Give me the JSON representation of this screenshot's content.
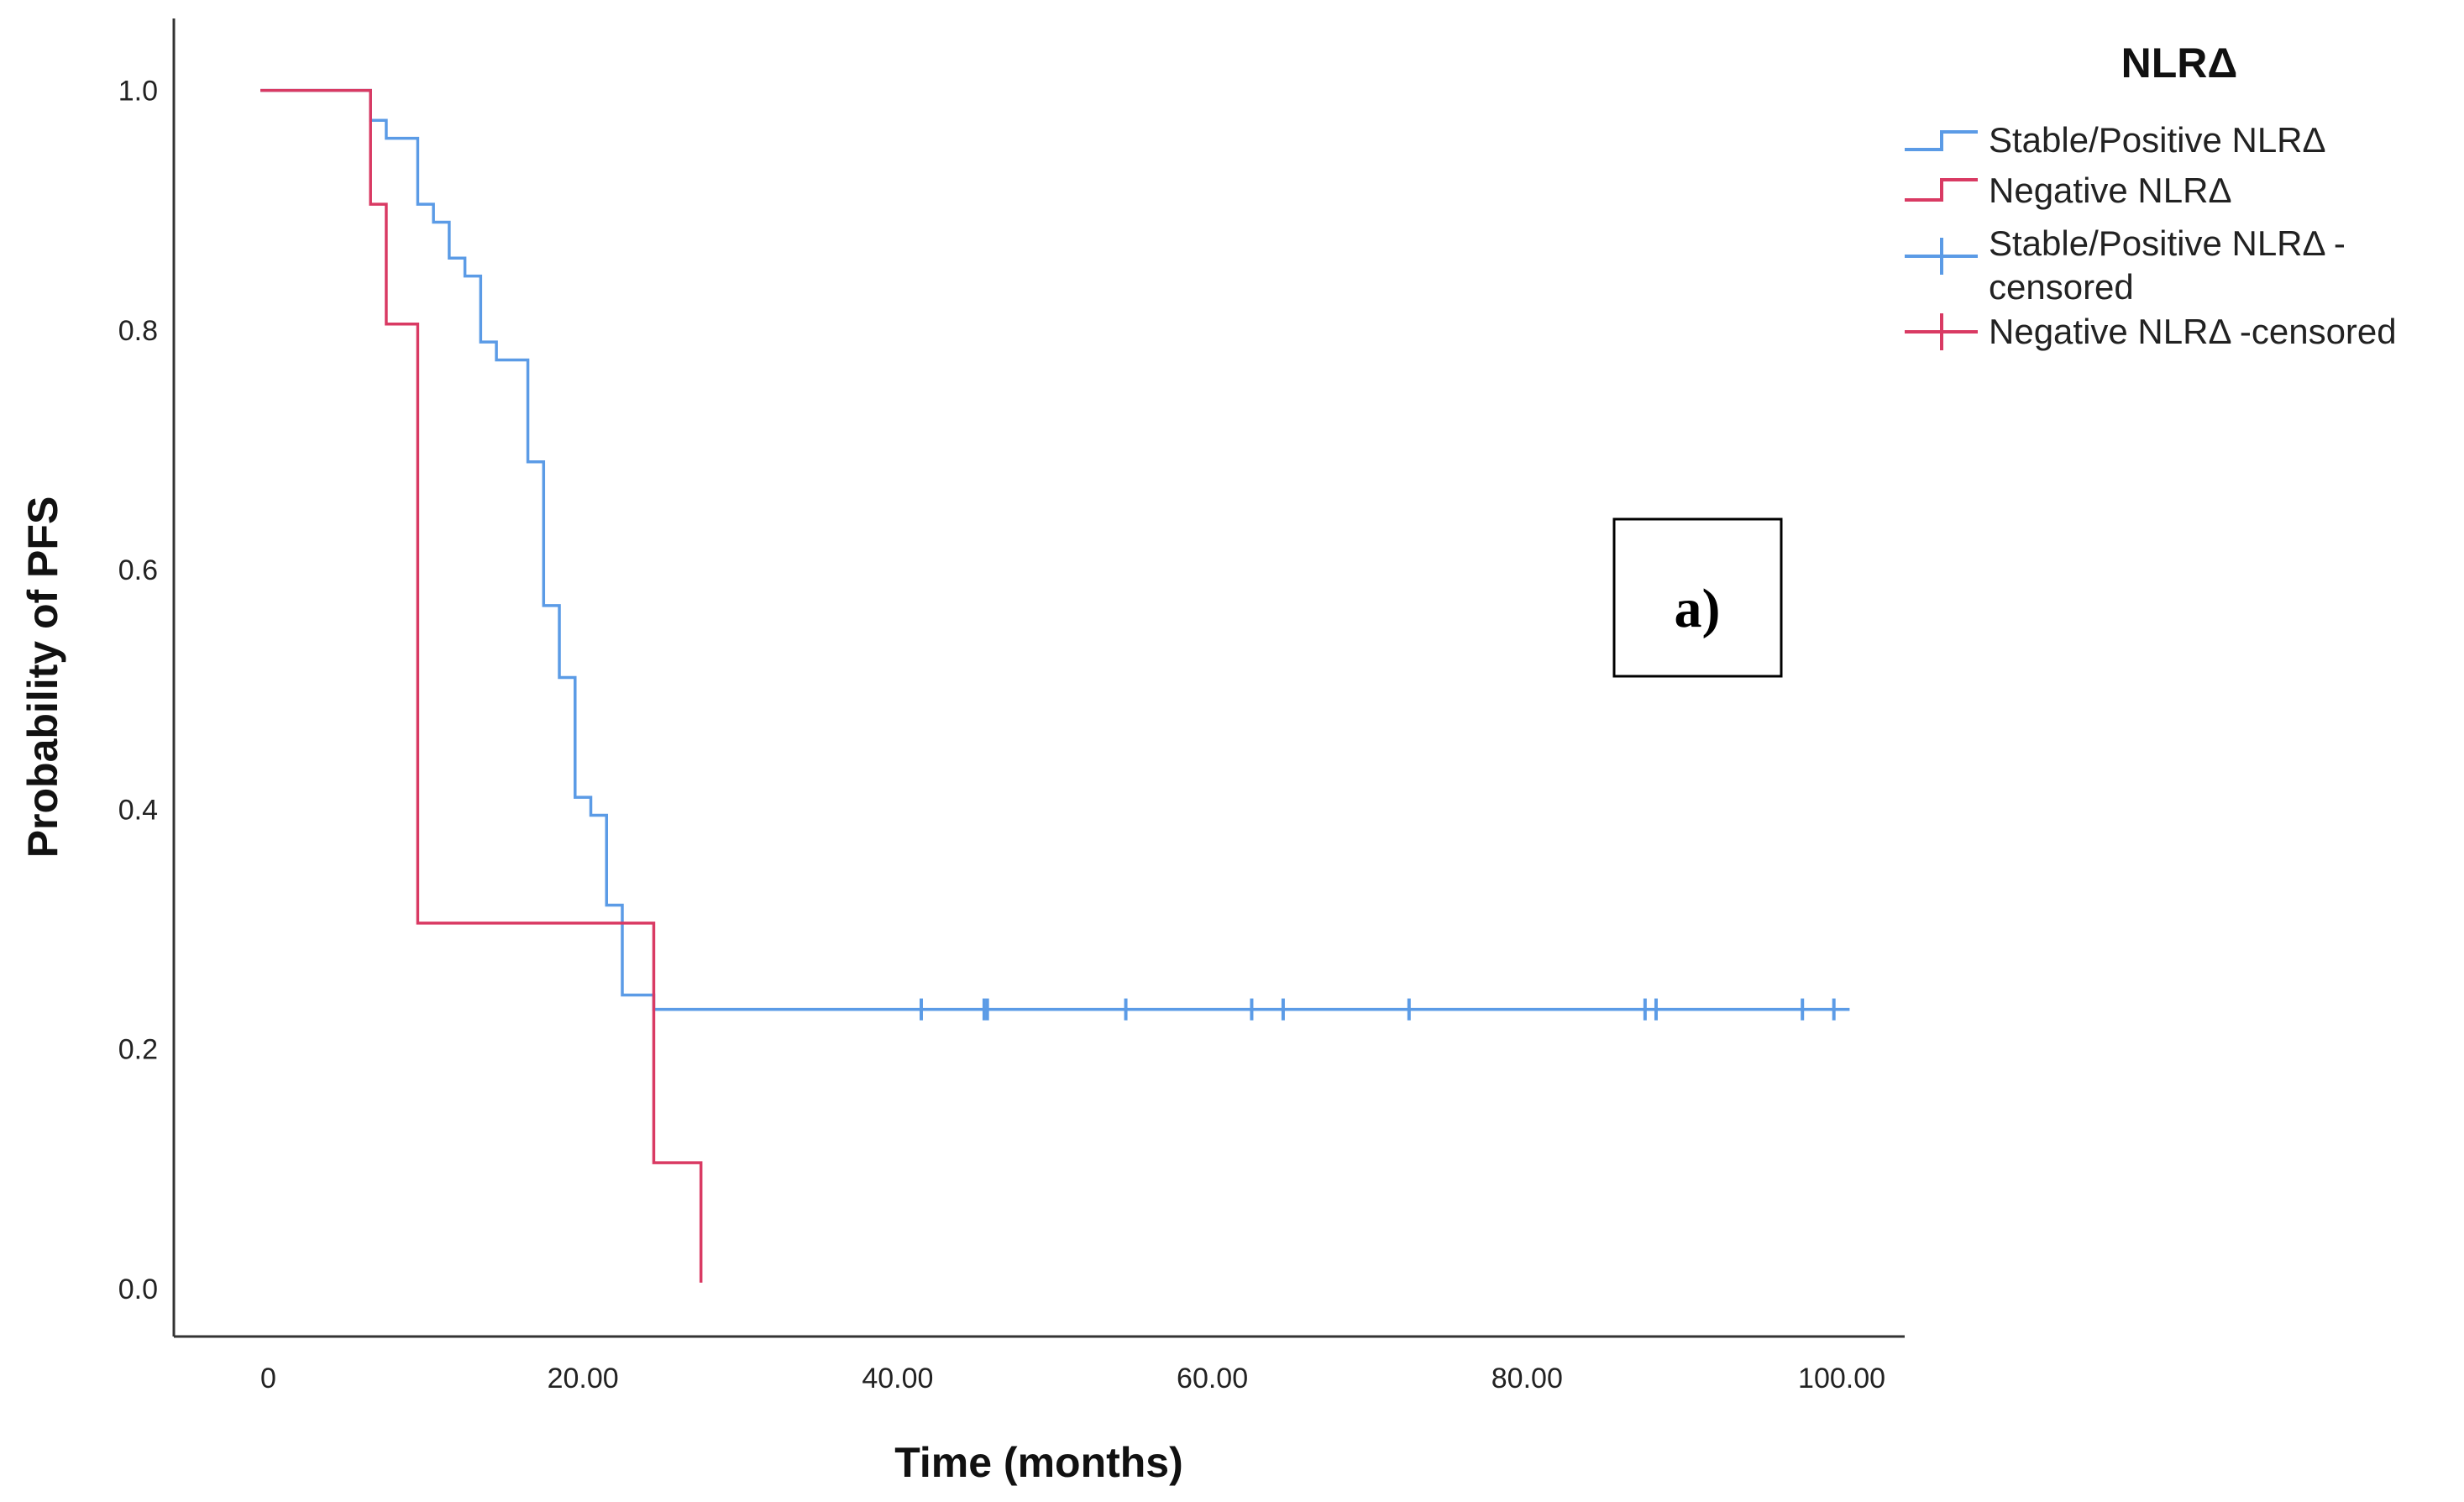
{
  "chart_data": {
    "type": "line",
    "title": "",
    "xlabel": "Time (months)",
    "ylabel": "Probability of PFS",
    "xlim": [
      -6,
      104
    ],
    "ylim": [
      -0.04,
      1.06
    ],
    "x_ticks": [
      0,
      20,
      40,
      60,
      80,
      100
    ],
    "x_tick_labels": [
      "0",
      "20.00",
      "40.00",
      "60.00",
      "80.00",
      "100.00"
    ],
    "y_ticks": [
      0.0,
      0.2,
      0.4,
      0.6,
      0.8,
      1.0
    ],
    "y_tick_labels": [
      "0.0",
      "0.2",
      "0.4",
      "0.6",
      "0.8",
      "1.0"
    ],
    "grid": false,
    "legend_placement": "top-right",
    "legend_title": "NLRΔ",
    "panel_label": "a)",
    "series": [
      {
        "name": "Stable/Positive NLRΔ",
        "color": "#5b9be6",
        "steps": [
          [
            -0.5,
            1.0
          ],
          [
            6.5,
            0.975
          ],
          [
            7.5,
            0.96
          ],
          [
            9.5,
            0.905
          ],
          [
            10.5,
            0.89
          ],
          [
            11.5,
            0.86
          ],
          [
            12.5,
            0.845
          ],
          [
            13.5,
            0.79
          ],
          [
            14.5,
            0.775
          ],
          [
            16.5,
            0.69
          ],
          [
            17.5,
            0.57
          ],
          [
            18.5,
            0.51
          ],
          [
            19.5,
            0.41
          ],
          [
            20.5,
            0.395
          ],
          [
            21.5,
            0.32
          ],
          [
            22.5,
            0.245
          ],
          [
            24.5,
            0.233
          ]
        ],
        "end_x": 100.5,
        "censored": [
          41.5,
          45.5,
          45.7,
          54.5,
          62.5,
          64.5,
          72.5,
          87.5,
          88.2,
          97.5,
          99.5
        ]
      },
      {
        "name": "Negative NLRΔ",
        "color": "#d93a63",
        "steps": [
          [
            -0.5,
            1.0
          ],
          [
            6.5,
            0.905
          ],
          [
            7.5,
            0.805
          ],
          [
            9.5,
            0.305
          ],
          [
            24.5,
            0.105
          ],
          [
            27.5,
            0.005
          ]
        ],
        "end_x": 27.5,
        "censored": []
      }
    ],
    "legend": [
      {
        "label": "Stable/Positive NLRΔ",
        "kind": "line",
        "color": "#5b9be6"
      },
      {
        "label": "Negative NLRΔ",
        "kind": "line",
        "color": "#d93a63"
      },
      {
        "label": "Stable/Positive NLRΔ -",
        "label_line2": "censored",
        "kind": "censor",
        "color": "#5b9be6"
      },
      {
        "label": "Negative NLRΔ -censored",
        "kind": "censor",
        "color": "#d93a63"
      }
    ]
  }
}
